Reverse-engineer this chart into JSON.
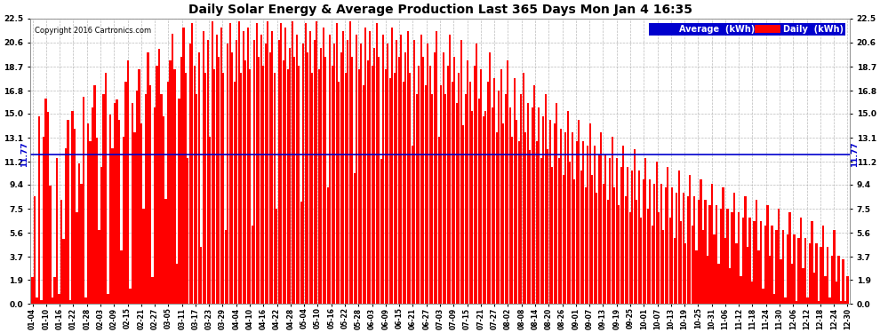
{
  "title": "Daily Solar Energy & Average Production Last 365 Days Mon Jan 4 16:35",
  "copyright_text": "Copyright 2016 Cartronics.com",
  "bar_color": "#ff0000",
  "avg_line_color": "#0000cd",
  "avg_value": 11.77,
  "avg_label": "11.77",
  "plot_bg_color": "#ffffff",
  "fig_bg_color": "#ffffff",
  "grid_color": "#aaaaaa",
  "title_color": "#000000",
  "legend_avg_color": "#0000cd",
  "legend_daily_color": "#ff0000",
  "legend_text_color": "#ffffff",
  "ytick_color": "#000000",
  "xtick_color": "#000000",
  "yticks": [
    0.0,
    1.9,
    3.7,
    5.6,
    7.5,
    9.4,
    11.2,
    13.1,
    15.0,
    16.8,
    18.7,
    20.6,
    22.5
  ],
  "ylim": [
    0.0,
    22.5
  ],
  "bar_width": 0.85,
  "figsize": [
    9.9,
    3.75
  ],
  "dpi": 100,
  "xtick_labels": [
    "01-04",
    "01-10",
    "01-16",
    "01-22",
    "01-28",
    "02-03",
    "02-09",
    "02-15",
    "02-21",
    "02-27",
    "03-05",
    "03-11",
    "03-17",
    "03-23",
    "03-29",
    "04-04",
    "04-10",
    "04-16",
    "04-22",
    "04-28",
    "05-04",
    "05-10",
    "05-16",
    "05-22",
    "05-28",
    "06-03",
    "06-09",
    "06-15",
    "06-21",
    "06-27",
    "07-03",
    "07-09",
    "07-15",
    "07-21",
    "07-27",
    "08-02",
    "08-08",
    "08-14",
    "08-20",
    "08-26",
    "09-01",
    "09-07",
    "09-13",
    "09-19",
    "09-25",
    "10-01",
    "10-07",
    "10-13",
    "10-19",
    "10-25",
    "10-31",
    "11-06",
    "11-12",
    "11-18",
    "11-24",
    "11-30",
    "12-06",
    "12-12",
    "12-18",
    "12-24",
    "12-30"
  ],
  "daily_values": [
    2.1,
    8.5,
    0.5,
    14.8,
    0.3,
    13.2,
    16.2,
    15.1,
    9.3,
    0.5,
    2.1,
    11.5,
    0.8,
    8.2,
    5.1,
    12.3,
    14.5,
    0.3,
    15.2,
    13.8,
    7.2,
    11.1,
    9.5,
    16.3,
    0.5,
    14.2,
    12.8,
    15.5,
    17.2,
    13.1,
    5.8,
    10.8,
    16.5,
    18.2,
    0.8,
    14.9,
    12.3,
    15.8,
    16.1,
    14.5,
    4.2,
    13.2,
    17.5,
    19.2,
    1.2,
    15.8,
    13.5,
    16.8,
    18.5,
    14.2,
    7.5,
    16.5,
    19.8,
    17.2,
    2.1,
    15.5,
    18.8,
    20.1,
    16.5,
    14.8,
    8.3,
    17.5,
    19.2,
    21.3,
    18.5,
    3.2,
    16.2,
    19.5,
    21.8,
    18.2,
    11.5,
    20.5,
    22.1,
    18.8,
    16.5,
    19.8,
    4.5,
    21.5,
    18.2,
    20.8,
    13.2,
    22.3,
    18.5,
    21.2,
    19.5,
    21.8,
    18.2,
    5.8,
    20.5,
    22.1,
    19.8,
    17.5,
    20.8,
    22.3,
    18.2,
    21.5,
    19.2,
    21.8,
    18.5,
    6.2,
    20.8,
    22.1,
    19.5,
    21.2,
    18.8,
    20.5,
    22.3,
    19.8,
    21.5,
    18.2,
    7.5,
    20.8,
    22.1,
    19.2,
    21.8,
    18.5,
    20.2,
    22.3,
    19.5,
    21.2,
    18.8,
    8.1,
    20.5,
    22.1,
    19.8,
    21.5,
    18.2,
    20.8,
    22.3,
    18.5,
    20.2,
    21.8,
    19.5,
    9.2,
    21.2,
    18.8,
    20.5,
    22.1,
    17.5,
    19.8,
    21.5,
    18.2,
    20.8,
    22.3,
    19.5,
    10.3,
    21.2,
    18.5,
    20.5,
    17.2,
    21.8,
    19.2,
    21.5,
    18.8,
    20.2,
    22.1,
    19.5,
    11.4,
    21.2,
    18.5,
    20.5,
    17.8,
    21.8,
    18.2,
    20.8,
    19.5,
    21.2,
    17.5,
    19.8,
    21.5,
    18.2,
    12.5,
    20.8,
    16.5,
    18.8,
    21.2,
    19.5,
    17.2,
    20.5,
    18.8,
    16.5,
    19.8,
    21.5,
    13.2,
    17.2,
    19.8,
    16.5,
    18.8,
    21.2,
    17.5,
    19.5,
    15.8,
    18.2,
    20.8,
    14.1,
    16.5,
    19.2,
    17.5,
    15.2,
    18.8,
    20.5,
    16.2,
    18.5,
    14.8,
    15.2,
    17.5,
    19.8,
    15.5,
    17.8,
    13.5,
    16.8,
    18.5,
    14.2,
    16.5,
    19.2,
    15.5,
    13.2,
    17.8,
    14.5,
    12.8,
    16.5,
    18.2,
    13.5,
    15.8,
    12.1,
    15.5,
    17.2,
    12.8,
    15.5,
    11.5,
    14.8,
    16.5,
    12.2,
    14.5,
    10.8,
    14.2,
    15.8,
    11.5,
    13.8,
    10.2,
    13.5,
    15.2,
    11.2,
    13.5,
    9.8,
    12.8,
    14.5,
    10.5,
    12.8,
    9.2,
    12.5,
    14.2,
    10.2,
    12.5,
    8.8,
    11.8,
    13.5,
    9.5,
    11.8,
    8.2,
    11.5,
    13.2,
    9.2,
    11.5,
    7.8,
    10.8,
    12.5,
    8.5,
    10.8,
    7.2,
    10.5,
    12.2,
    8.2,
    10.5,
    6.8,
    9.8,
    11.5,
    7.5,
    9.8,
    6.2,
    9.5,
    11.2,
    7.2,
    9.5,
    5.8,
    9.2,
    10.8,
    6.8,
    9.2,
    5.2,
    8.8,
    10.5,
    6.5,
    8.8,
    4.8,
    8.5,
    10.2,
    6.2,
    8.5,
    4.2,
    8.2,
    9.8,
    5.8,
    8.2,
    3.8,
    7.8,
    9.5,
    5.5,
    7.8,
    3.2,
    7.5,
    9.2,
    5.2,
    7.5,
    2.8,
    7.2,
    8.8,
    4.8,
    7.2,
    2.2,
    6.8,
    8.5,
    4.5,
    6.8,
    1.8,
    6.5,
    8.2,
    4.2,
    6.5,
    1.2,
    6.2,
    7.8,
    3.8,
    6.2,
    0.8,
    5.8,
    7.5,
    3.5,
    5.8,
    0.5,
    5.5,
    7.2,
    3.2,
    5.5,
    0.2,
    5.2,
    6.8,
    2.8,
    5.2,
    0.5,
    4.8,
    6.5,
    2.5,
    4.8,
    0.2,
    4.5,
    6.2,
    2.2,
    4.5,
    0.5,
    3.8,
    5.8,
    1.8,
    3.8,
    0.2,
    3.5,
    0.2,
    2.2
  ]
}
